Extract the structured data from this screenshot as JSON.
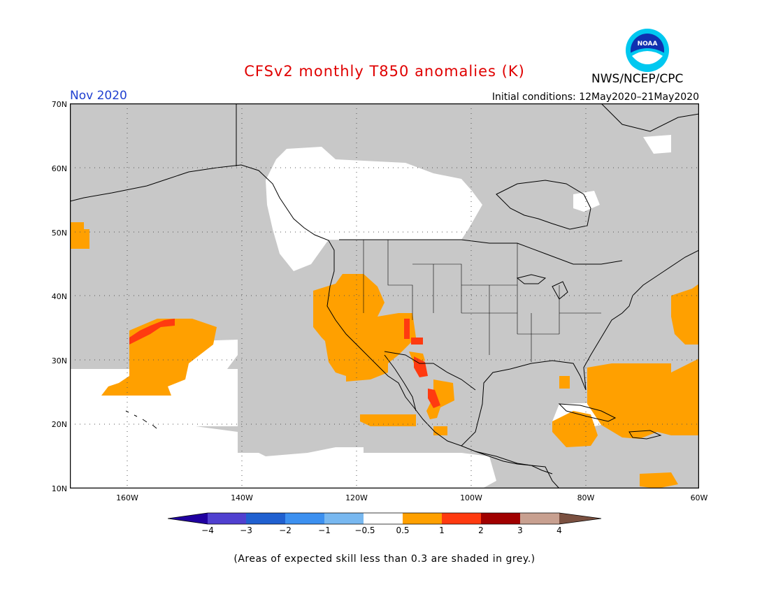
{
  "header": {
    "title": "CFSv2 monthly T850 anomalies (K)",
    "month": "Nov 2020",
    "initial_conditions": "Initial conditions: 12May2020–21May2020",
    "agency": "NWS/NCEP/CPC",
    "logo_text": "NOAA"
  },
  "map": {
    "lat_labels": [
      "70N",
      "60N",
      "50N",
      "40N",
      "30N",
      "20N",
      "10N"
    ],
    "lon_labels": [
      "160W",
      "140W",
      "120W",
      "100W",
      "80W",
      "60W"
    ],
    "region": "North America, Northeast Pacific, Gulf of Mexico, Caribbean",
    "grey_meaning": "expected skill less than 0.3",
    "colors": {
      "grey": "#c8c8c8",
      "orange": "#ffa000",
      "red_orange": "#ff3a10",
      "land_outline": "#000000",
      "grid": "#555555"
    }
  },
  "colorbar": {
    "labels": [
      "−4",
      "−3",
      "−2",
      "−1",
      "−0.5",
      "0.5",
      "1",
      "2",
      "3",
      "4"
    ],
    "colors": [
      "#2000a0",
      "#5040d0",
      "#2060d0",
      "#3c90f0",
      "#78b8f0",
      "#ffffff",
      "#ffa000",
      "#ff3a10",
      "#a00000",
      "#c8a090",
      "#7a5040"
    ]
  },
  "footnote": "(Areas of expected skill less than 0.3 are shaded in grey.)"
}
